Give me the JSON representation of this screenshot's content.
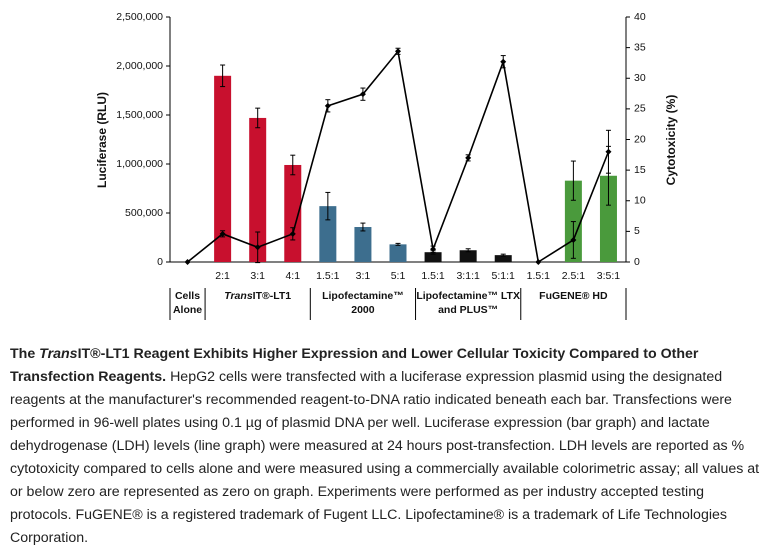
{
  "chart_data": {
    "type": "bar-line",
    "y_label": "Luciferase (RLU)",
    "y2_label": "Cytotoxicity (%)",
    "ylim": [
      0,
      2500000
    ],
    "yticks": [
      0,
      {
        "value": 500000,
        "label": "500,000"
      },
      {
        "value": 1000000,
        "label": "1,000,000"
      },
      {
        "value": 1500000,
        "label": "1,500,000"
      },
      {
        "value": 2000000,
        "label": "2,000,000"
      },
      {
        "value": 2500000,
        "label": "2,500,000"
      }
    ],
    "y2lim": [
      0,
      40
    ],
    "y2ticks": [
      0,
      5,
      10,
      15,
      20,
      25,
      30,
      35,
      40
    ],
    "categories": [
      null,
      "2:1",
      "3:1",
      "4:1",
      "1.5:1",
      "3:1",
      "5:1",
      "1.5:1",
      "3:1:1",
      "5:1:1",
      "1.5:1",
      "2.5:1",
      "3:5:1"
    ],
    "groups": [
      {
        "lines": [
          "Cells",
          "Alone"
        ],
        "size": 1
      },
      {
        "lines": [
          {
            "italic": "Trans",
            "text": "IT®-LT1"
          }
        ],
        "size": 3
      },
      {
        "lines": [
          "Lipofectamine™",
          "2000"
        ],
        "size": 3
      },
      {
        "lines": [
          "Lipofectamine™ LTX",
          "and PLUS™"
        ],
        "size": 3
      },
      {
        "lines": [
          "FuGENE® HD"
        ],
        "size": 3
      }
    ],
    "series": [
      {
        "type": "bar",
        "colors": [
          null,
          "#c8102e",
          "#c8102e",
          "#c8102e",
          "#3d6e8e",
          "#3d6e8e",
          "#3d6e8e",
          "#111111",
          "#111111",
          "#111111",
          null,
          "#4a9a3c",
          "#4a9a3c"
        ],
        "values": [
          null,
          1900000,
          1470000,
          990000,
          570000,
          357000,
          180000,
          100000,
          120000,
          70000,
          null,
          830000,
          880000
        ],
        "errors": [
          null,
          110000,
          100000,
          100000,
          140000,
          40000,
          10000,
          20000,
          15000,
          10000,
          null,
          200000,
          300000
        ]
      },
      {
        "type": "line",
        "axis": "y2",
        "color": "#000000",
        "values": [
          0,
          4.6,
          2.4,
          4.6,
          25.5,
          27.4,
          34.4,
          2.1,
          17,
          32.7,
          0,
          3.6,
          18
        ],
        "errors": [
          null,
          0.5,
          2.5,
          1,
          1,
          1,
          0.5,
          0.5,
          0.5,
          1,
          null,
          3,
          3.5
        ]
      }
    ]
  },
  "caption": {
    "title": [
      {
        "text": "The "
      },
      {
        "text": "Trans",
        "italic": true
      },
      {
        "text": "IT®-LT1 Reagent Exhibits Higher Expression and Lower Cellular Toxicity Compared to Other Transfection Reagents."
      }
    ],
    "body": "HepG2 cells were transfected with a luciferase expression plasmid using the designated reagents at the manufacturer's recommended reagent-to-DNA ratio indicated beneath each bar. Transfections were performed in 96-well plates using 0.1 µg of plasmid DNA per well. Luciferase expression (bar graph) and lactate dehydrogenase (LDH) levels (line graph) were measured at 24 hours post-transfection. LDH levels are reported as % cytotoxicity compared to cells alone and were measured using a commercially available colorimetric assay; all values at or below zero are represented as zero on graph. Experiments were performed as per industry accepted testing protocols. FuGENE® is a registered trademark of Fugent LLC. Lipofectamine® is a trademark of Life Technologies Corporation."
  }
}
